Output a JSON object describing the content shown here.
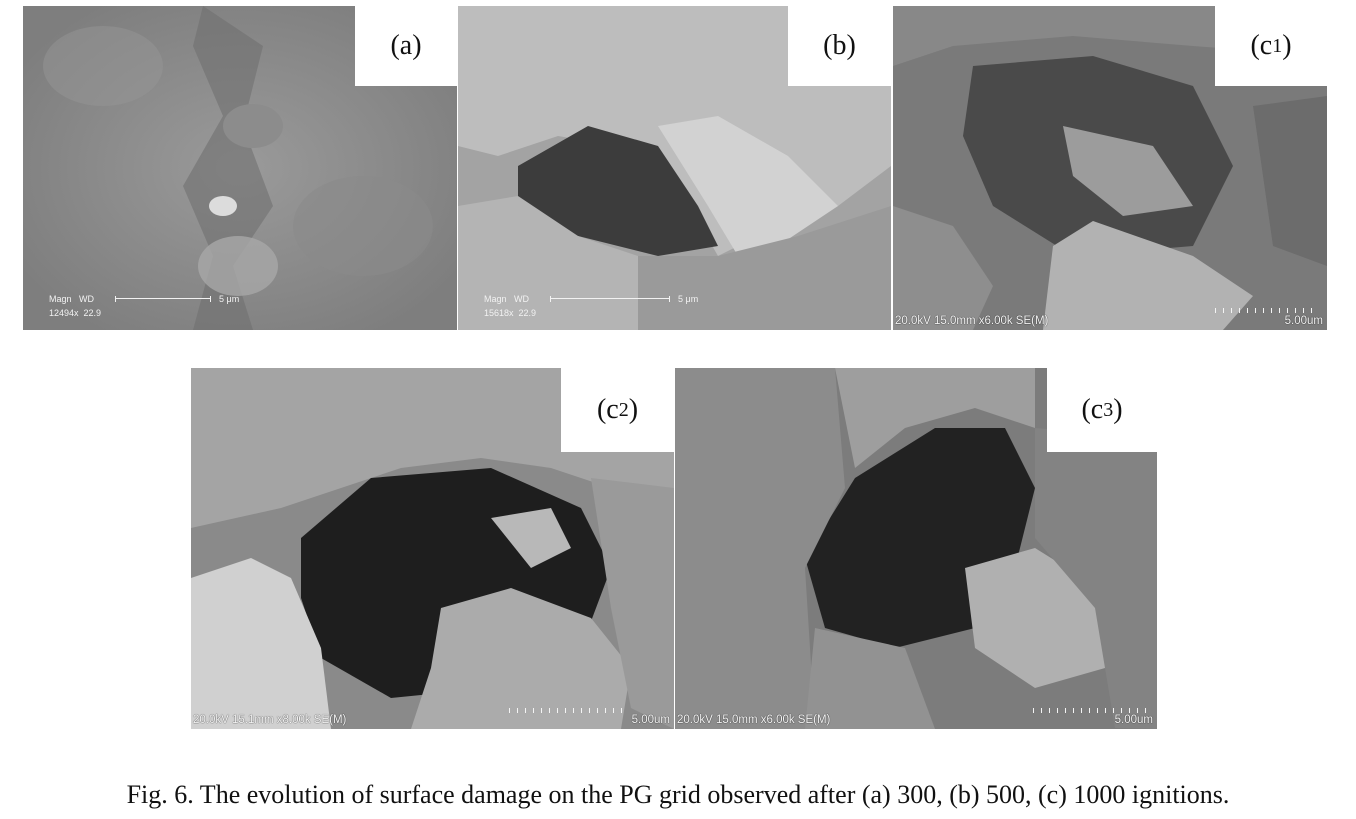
{
  "figure": {
    "caption": "Fig. 6. The evolution of surface damage on the PG grid observed after (a) 300, (b) 500, (c) 1000 ignitions.",
    "panels": [
      {
        "id": "a",
        "label_open": "(a",
        "label_sub": "",
        "label_close": ")",
        "meta_header": "Magn   WD",
        "meta_values": "12494x  22.9",
        "scale_text": "5 μm"
      },
      {
        "id": "b",
        "label_open": "(b",
        "label_sub": "",
        "label_close": ")",
        "meta_header": "Magn   WD",
        "meta_values": "15618x  22.9",
        "scale_text": "5 μm"
      },
      {
        "id": "c1",
        "label_open": "(c",
        "label_sub": "1",
        "label_close": ")",
        "footer_left": "20.0kV 15.0mm x6.00k SE(M)",
        "footer_right": "5.00um"
      },
      {
        "id": "c2",
        "label_open": "(c",
        "label_sub": "2",
        "label_close": ")",
        "footer_left": "20.0kV 15.1mm x8.00k SE(M)",
        "footer_right": "5.00um"
      },
      {
        "id": "c3",
        "label_open": "(c",
        "label_sub": "3",
        "label_close": ")",
        "footer_left": "20.0kV 15.0mm x6.00k SE(M)",
        "footer_right": "5.00um"
      }
    ]
  }
}
